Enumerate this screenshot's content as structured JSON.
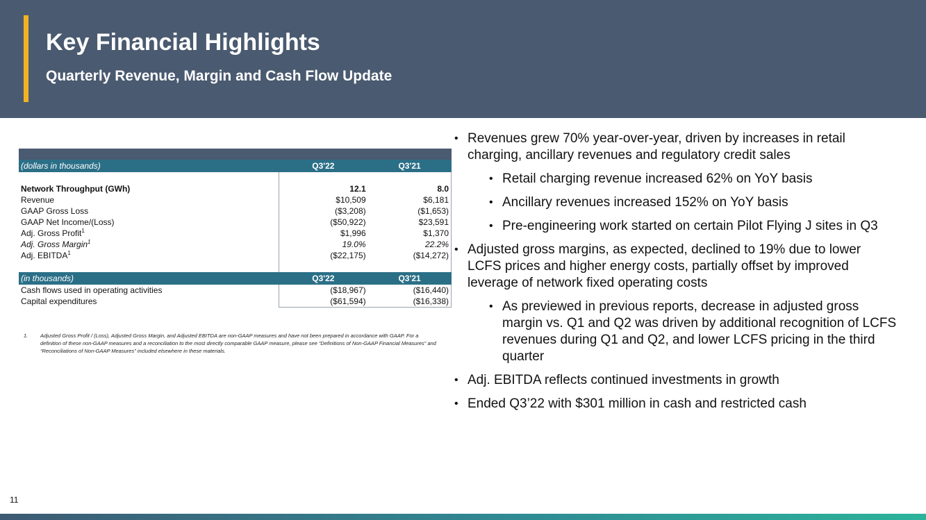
{
  "header": {
    "title": "Key Financial Highlights",
    "subtitle": "Quarterly Revenue, Margin and Cash Flow Update"
  },
  "table1": {
    "header": {
      "label": "(dollars in thousands)",
      "col1": "Q3'22",
      "col2": "Q3'21"
    },
    "rows": [
      {
        "label": "Network Throughput (GWh)",
        "sup": "",
        "v1": "12.1",
        "v2": "8.0"
      },
      {
        "label": "Revenue",
        "sup": "",
        "v1": "$10,509",
        "v2": "$6,181"
      },
      {
        "label": "GAAP Gross Loss",
        "sup": "",
        "v1": "($3,208)",
        "v2": "($1,653)"
      },
      {
        "label": "GAAP Net Income/(Loss)",
        "sup": "",
        "v1": "($50,922)",
        "v2": "$23,591"
      },
      {
        "label": "Adj. Gross Profit",
        "sup": "1",
        "v1": "$1,996",
        "v2": "$1,370"
      },
      {
        "label": "Adj. Gross Margin",
        "sup": "1",
        "v1": "19.0%",
        "v2": "22.2%"
      },
      {
        "label": "Adj. EBITDA",
        "sup": "1",
        "v1": "($22,175)",
        "v2": "($14,272)"
      }
    ]
  },
  "table2": {
    "header": {
      "label": "(in thousands)",
      "col1": "Q3'22",
      "col2": "Q3'21"
    },
    "rows": [
      {
        "label": "Cash flows used in operating activities",
        "v1": "($18,967)",
        "v2": "($16,440)"
      },
      {
        "label": "Capital expenditures",
        "v1": "($61,594)",
        "v2": "($16,338)"
      }
    ]
  },
  "footnote": {
    "number": "1.",
    "text": "Adjusted Gross Profit / (Loss), Adjusted Gross Margin, and Adjusted EBITDA are non-GAAP measures and have not been prepared in accordance with GAAP.  For a definition of these non-GAAP measures and a reconciliation to the most directly comparable GAAP measure, please see “Definitions of Non-GAAP Financial Measures” and “Reconciliations of Non-GAAP Measures” included elsewhere in these materials."
  },
  "bullets": [
    {
      "level": 1,
      "text": "Revenues grew 70% year-over-year, driven by increases in retail charging, ancillary revenues and regulatory credit sales"
    },
    {
      "level": 2,
      "text": "Retail charging revenue increased 62% on YoY basis"
    },
    {
      "level": 2,
      "text": "Ancillary revenues increased 152% on YoY basis"
    },
    {
      "level": 2,
      "text": "Pre-engineering work started on certain Pilot Flying J sites in Q3"
    },
    {
      "level": 1,
      "text": "Adjusted gross margins, as expected, declined to 19% due to lower LCFS prices and higher energy costs, partially offset by improved leverage of network fixed operating costs"
    },
    {
      "level": 2,
      "text": "As previewed in previous reports, decrease in adjusted gross margin vs. Q1 and Q2 was driven by additional recognition of LCFS revenues during Q1 and Q2, and lower LCFS pricing in the third quarter"
    },
    {
      "level": 1,
      "text": "Adj. EBITDA reflects continued investments in growth"
    },
    {
      "level": 1,
      "text": "Ended Q3’22 with $301 million in cash and restricted cash"
    }
  ],
  "bullet_symbol": "•",
  "page_number": "11"
}
